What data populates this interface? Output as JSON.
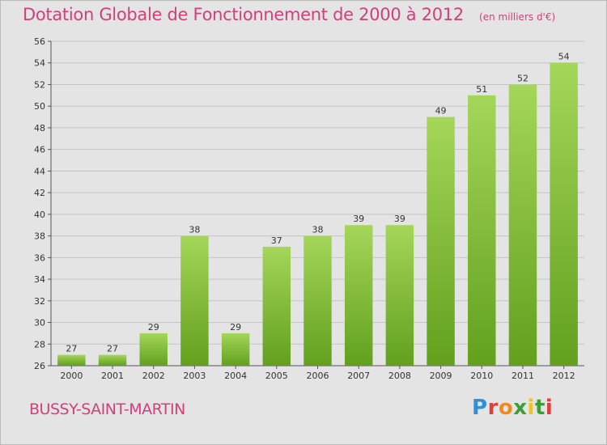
{
  "chart_data": {
    "type": "bar",
    "title": "Dotation Globale de Fonctionnement de 2000 à 2012",
    "subtitle": "(en milliers d'€)",
    "categories": [
      "2000",
      "2001",
      "2002",
      "2003",
      "2004",
      "2005",
      "2006",
      "2007",
      "2008",
      "2009",
      "2010",
      "2011",
      "2012"
    ],
    "values": [
      27,
      27,
      29,
      38,
      29,
      37,
      38,
      39,
      39,
      49,
      51,
      52,
      54
    ],
    "ylim": [
      26,
      56
    ],
    "yticks": [
      26,
      28,
      30,
      32,
      34,
      36,
      38,
      40,
      42,
      44,
      46,
      48,
      50,
      52,
      54,
      56
    ],
    "grid": true,
    "xlabel": "",
    "ylabel": ""
  },
  "footer": {
    "commune": "BUSSY-SAINT-MARTIN",
    "brand": "Proxiti"
  },
  "colors": {
    "title": "#d0417a",
    "bar_light": "#a4d65a",
    "bar_dark": "#62a01e",
    "grid": "#c4c4c4",
    "background": "#e4e4e4"
  }
}
